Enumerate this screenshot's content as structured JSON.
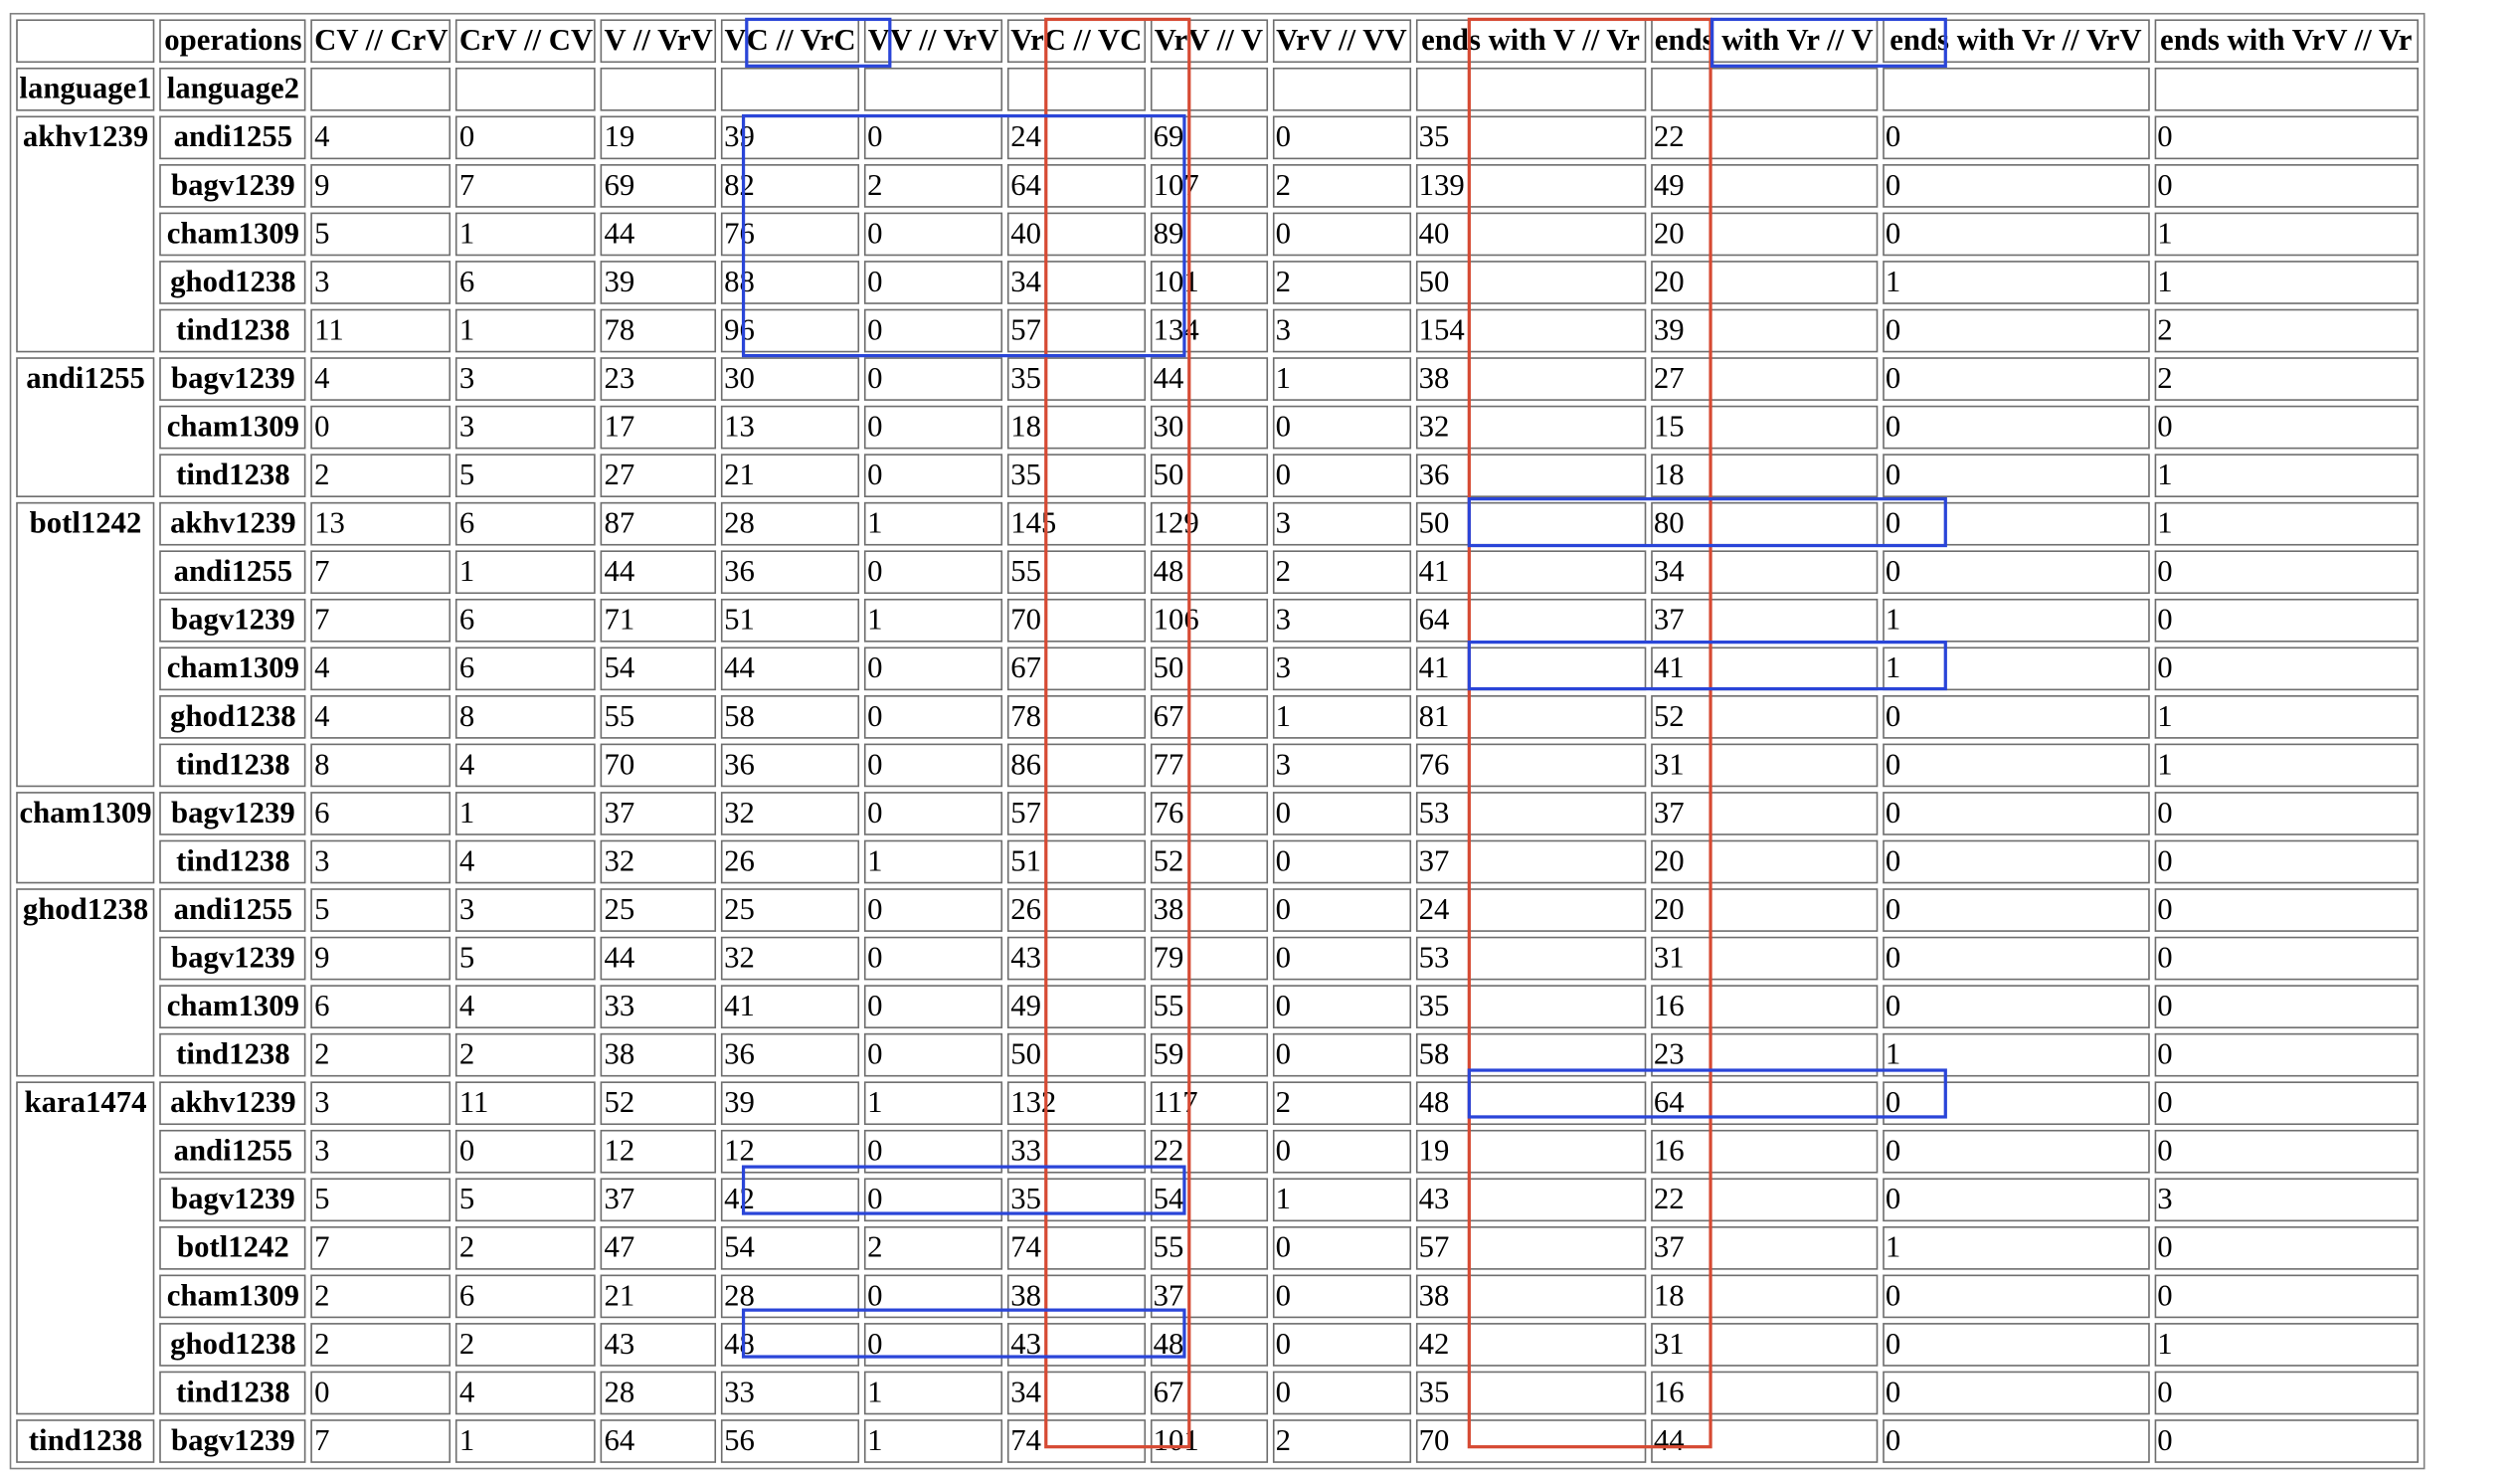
{
  "table": {
    "header_row": [
      "",
      "operations",
      "CV // CrV",
      "CrV // CV",
      "V // VrV",
      "VC // VrC",
      "VV // VrV",
      "VrC // VC",
      "VrV // V",
      "VrV // VV",
      "ends with V // Vr",
      "ends with Vr // V",
      "ends with Vr // VrV",
      "ends with VrV // Vr"
    ],
    "subheader_row": [
      "language1",
      "language2",
      "",
      "",
      "",
      "",
      "",
      "",
      "",
      "",
      "",
      "",
      "",
      ""
    ],
    "groups": [
      {
        "language1": "akhv1239",
        "rows": [
          {
            "language2": "andi1255",
            "values": [
              "4",
              "0",
              "19",
              "39",
              "0",
              "24",
              "69",
              "0",
              "35",
              "22",
              "0",
              "0"
            ]
          },
          {
            "language2": "bagv1239",
            "values": [
              "9",
              "7",
              "69",
              "82",
              "2",
              "64",
              "107",
              "2",
              "139",
              "49",
              "0",
              "0"
            ]
          },
          {
            "language2": "cham1309",
            "values": [
              "5",
              "1",
              "44",
              "76",
              "0",
              "40",
              "89",
              "0",
              "40",
              "20",
              "0",
              "1"
            ]
          },
          {
            "language2": "ghod1238",
            "values": [
              "3",
              "6",
              "39",
              "88",
              "0",
              "34",
              "101",
              "2",
              "50",
              "20",
              "1",
              "1"
            ]
          },
          {
            "language2": "tind1238",
            "values": [
              "11",
              "1",
              "78",
              "96",
              "0",
              "57",
              "134",
              "3",
              "154",
              "39",
              "0",
              "2"
            ]
          }
        ]
      },
      {
        "language1": "andi1255",
        "rows": [
          {
            "language2": "bagv1239",
            "values": [
              "4",
              "3",
              "23",
              "30",
              "0",
              "35",
              "44",
              "1",
              "38",
              "27",
              "0",
              "2"
            ]
          },
          {
            "language2": "cham1309",
            "values": [
              "0",
              "3",
              "17",
              "13",
              "0",
              "18",
              "30",
              "0",
              "32",
              "15",
              "0",
              "0"
            ]
          },
          {
            "language2": "tind1238",
            "values": [
              "2",
              "5",
              "27",
              "21",
              "0",
              "35",
              "50",
              "0",
              "36",
              "18",
              "0",
              "1"
            ]
          }
        ]
      },
      {
        "language1": "botl1242",
        "rows": [
          {
            "language2": "akhv1239",
            "values": [
              "13",
              "6",
              "87",
              "28",
              "1",
              "145",
              "129",
              "3",
              "50",
              "80",
              "0",
              "1"
            ]
          },
          {
            "language2": "andi1255",
            "values": [
              "7",
              "1",
              "44",
              "36",
              "0",
              "55",
              "48",
              "2",
              "41",
              "34",
              "0",
              "0"
            ]
          },
          {
            "language2": "bagv1239",
            "values": [
              "7",
              "6",
              "71",
              "51",
              "1",
              "70",
              "106",
              "3",
              "64",
              "37",
              "1",
              "0"
            ]
          },
          {
            "language2": "cham1309",
            "values": [
              "4",
              "6",
              "54",
              "44",
              "0",
              "67",
              "50",
              "3",
              "41",
              "41",
              "1",
              "0"
            ]
          },
          {
            "language2": "ghod1238",
            "values": [
              "4",
              "8",
              "55",
              "58",
              "0",
              "78",
              "67",
              "1",
              "81",
              "52",
              "0",
              "1"
            ]
          },
          {
            "language2": "tind1238",
            "values": [
              "8",
              "4",
              "70",
              "36",
              "0",
              "86",
              "77",
              "3",
              "76",
              "31",
              "0",
              "1"
            ]
          }
        ]
      },
      {
        "language1": "cham1309",
        "rows": [
          {
            "language2": "bagv1239",
            "values": [
              "6",
              "1",
              "37",
              "32",
              "0",
              "57",
              "76",
              "0",
              "53",
              "37",
              "0",
              "0"
            ]
          },
          {
            "language2": "tind1238",
            "values": [
              "3",
              "4",
              "32",
              "26",
              "1",
              "51",
              "52",
              "0",
              "37",
              "20",
              "0",
              "0"
            ]
          }
        ]
      },
      {
        "language1": "ghod1238",
        "rows": [
          {
            "language2": "andi1255",
            "values": [
              "5",
              "3",
              "25",
              "25",
              "0",
              "26",
              "38",
              "0",
              "24",
              "20",
              "0",
              "0"
            ]
          },
          {
            "language2": "bagv1239",
            "values": [
              "9",
              "5",
              "44",
              "32",
              "0",
              "43",
              "79",
              "0",
              "53",
              "31",
              "0",
              "0"
            ]
          },
          {
            "language2": "cham1309",
            "values": [
              "6",
              "4",
              "33",
              "41",
              "0",
              "49",
              "55",
              "0",
              "35",
              "16",
              "0",
              "0"
            ]
          },
          {
            "language2": "tind1238",
            "values": [
              "2",
              "2",
              "38",
              "36",
              "0",
              "50",
              "59",
              "0",
              "58",
              "23",
              "1",
              "0"
            ]
          }
        ]
      },
      {
        "language1": "kara1474",
        "rows": [
          {
            "language2": "akhv1239",
            "values": [
              "3",
              "11",
              "52",
              "39",
              "1",
              "132",
              "117",
              "2",
              "48",
              "64",
              "0",
              "0"
            ]
          },
          {
            "language2": "andi1255",
            "values": [
              "3",
              "0",
              "12",
              "12",
              "0",
              "33",
              "22",
              "0",
              "19",
              "16",
              "0",
              "0"
            ]
          },
          {
            "language2": "bagv1239",
            "values": [
              "5",
              "5",
              "37",
              "42",
              "0",
              "35",
              "54",
              "1",
              "43",
              "22",
              "0",
              "3"
            ]
          },
          {
            "language2": "botl1242",
            "values": [
              "7",
              "2",
              "47",
              "54",
              "2",
              "74",
              "55",
              "0",
              "57",
              "37",
              "1",
              "0"
            ]
          },
          {
            "language2": "cham1309",
            "values": [
              "2",
              "6",
              "21",
              "28",
              "0",
              "38",
              "37",
              "0",
              "38",
              "18",
              "0",
              "0"
            ]
          },
          {
            "language2": "ghod1238",
            "values": [
              "2",
              "2",
              "43",
              "48",
              "0",
              "43",
              "48",
              "0",
              "42",
              "31",
              "0",
              "1"
            ]
          },
          {
            "language2": "tind1238",
            "values": [
              "0",
              "4",
              "28",
              "33",
              "1",
              "34",
              "67",
              "0",
              "35",
              "16",
              "0",
              "0"
            ]
          }
        ]
      },
      {
        "language1": "tind1238",
        "rows": [
          {
            "language2": "bagv1239",
            "values": [
              "7",
              "1",
              "64",
              "56",
              "1",
              "74",
              "101",
              "2",
              "70",
              "44",
              "0",
              "0"
            ]
          }
        ]
      }
    ]
  },
  "colors": {
    "highlight_blue": "#2a45d8",
    "highlight_red": "#d64a33",
    "border": "#6e6e6e"
  }
}
